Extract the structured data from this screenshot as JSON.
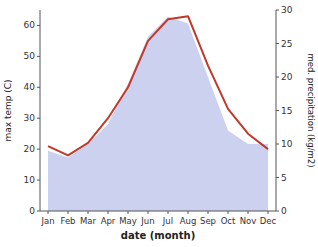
{
  "chart_data": {
    "type": "line",
    "xlabel": "date (month)",
    "ylabel": "max temp (C)",
    "y2label": "med. precipitation (kg/m2)",
    "categories": [
      "Jan",
      "Feb",
      "Mar",
      "Apr",
      "May",
      "Jun",
      "Jul",
      "Aug",
      "Sep",
      "Oct",
      "Nov",
      "Dec"
    ],
    "series": [
      {
        "type": "line",
        "color": "#c0392b",
        "values": [
          21,
          18,
          22,
          30,
          40,
          55,
          62,
          63,
          47,
          33,
          25,
          20
        ]
      },
      {
        "type": "area",
        "color": "#c8ccee",
        "axis": "y2",
        "values": [
          9,
          8,
          10,
          13,
          19,
          26,
          29,
          28,
          20,
          12,
          10,
          10
        ]
      }
    ],
    "ylim": [
      0,
      65
    ],
    "yticks": [
      0,
      10,
      20,
      30,
      40,
      50,
      60
    ],
    "y2lim": [
      0,
      30
    ],
    "y2ticks": [
      0,
      5,
      10,
      15,
      20,
      25,
      30
    ],
    "grid": false
  }
}
